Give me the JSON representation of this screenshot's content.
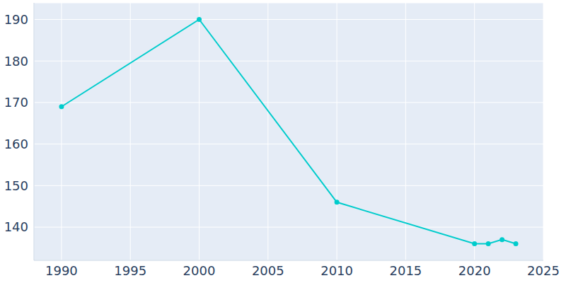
{
  "chart_data": {
    "type": "line",
    "x": [
      1990,
      2000,
      2010,
      2020,
      2021,
      2022,
      2023
    ],
    "values": [
      169,
      190,
      146,
      136,
      136,
      137,
      136
    ],
    "color": "#00cccc",
    "xlim": [
      1988,
      2025
    ],
    "xticks": [
      1990,
      1995,
      2000,
      2005,
      2010,
      2015,
      2020,
      2025
    ],
    "ylim": [
      132,
      194
    ],
    "yticks": [
      140,
      150,
      160,
      170,
      180,
      190
    ],
    "grid": true,
    "marker": "circle"
  }
}
